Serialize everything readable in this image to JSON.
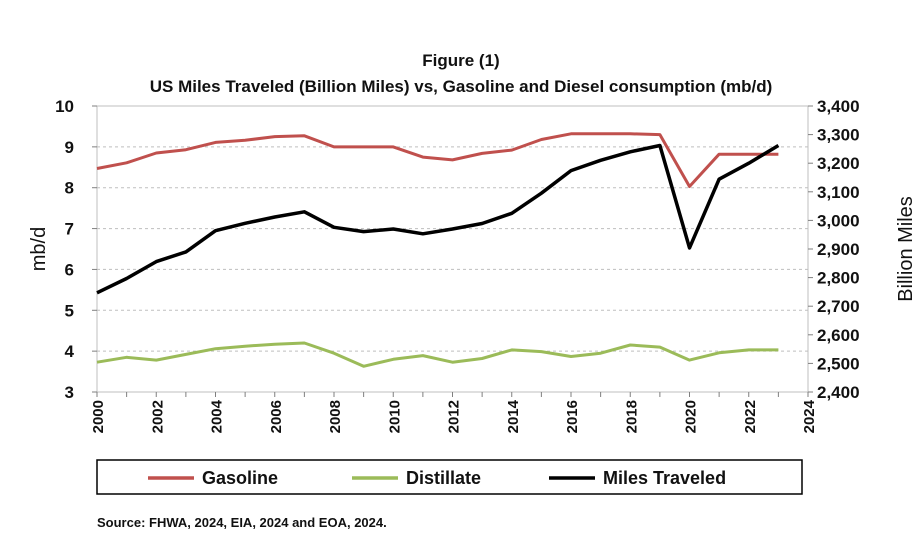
{
  "chart_data": {
    "type": "line",
    "title": "Figure (1)",
    "subtitle": "US Miles Traveled (Billion Miles) vs, Gasoline and Diesel consumption (mb/d)",
    "ylabel": "mb/d",
    "y2label": "Billion Miles",
    "xlabel": "",
    "xlim": [
      2000,
      2024
    ],
    "ylim": [
      3,
      10
    ],
    "y2lim": [
      2400,
      3400
    ],
    "x_ticks": [
      "2000",
      "2002",
      "2004",
      "2006",
      "2008",
      "2010",
      "2012",
      "2014",
      "2016",
      "2018",
      "2020",
      "2022",
      "2024"
    ],
    "y_ticks": [
      "3",
      "4",
      "5",
      "6",
      "7",
      "8",
      "9",
      "10"
    ],
    "y2_ticks": [
      "2,400",
      "2,500",
      "2,600",
      "2,700",
      "2,800",
      "2,900",
      "3,000",
      "3,100",
      "3,200",
      "3,300",
      "3,400"
    ],
    "grid": "horizontal dashed",
    "legend_position": "bottom",
    "x": [
      2000,
      2001,
      2002,
      2003,
      2004,
      2005,
      2006,
      2007,
      2008,
      2009,
      2010,
      2011,
      2012,
      2013,
      2014,
      2015,
      2016,
      2017,
      2018,
      2019,
      2020,
      2021,
      2022,
      2023
    ],
    "series": [
      {
        "name": "Gasoline",
        "axis": "left",
        "color": "#c0504d",
        "values": [
          8.47,
          8.61,
          8.85,
          8.93,
          9.11,
          9.16,
          9.25,
          9.27,
          9.0,
          9.0,
          9.0,
          8.75,
          8.68,
          8.84,
          8.92,
          9.18,
          9.32,
          9.32,
          9.32,
          9.3,
          8.03,
          8.82,
          8.82,
          8.82
        ]
      },
      {
        "name": "Distillate",
        "axis": "left",
        "color": "#9bbb59",
        "values": [
          3.73,
          3.85,
          3.78,
          3.92,
          4.06,
          4.12,
          4.17,
          4.2,
          3.95,
          3.63,
          3.8,
          3.89,
          3.73,
          3.82,
          4.03,
          3.99,
          3.87,
          3.95,
          4.15,
          4.1,
          3.78,
          3.96,
          4.03,
          4.03
        ]
      },
      {
        "name": "Miles Traveled",
        "axis": "right",
        "color": "#000000",
        "values": [
          2747,
          2797,
          2856,
          2890,
          2964,
          2990,
          3012,
          3030,
          2976,
          2961,
          2970,
          2953,
          2970,
          2989,
          3025,
          3095,
          3174,
          3210,
          3240,
          3262,
          2904,
          3144,
          3200,
          3262
        ]
      }
    ]
  },
  "source_note": "Source: FHWA, 2024, EIA, 2024 and EOA, 2024."
}
